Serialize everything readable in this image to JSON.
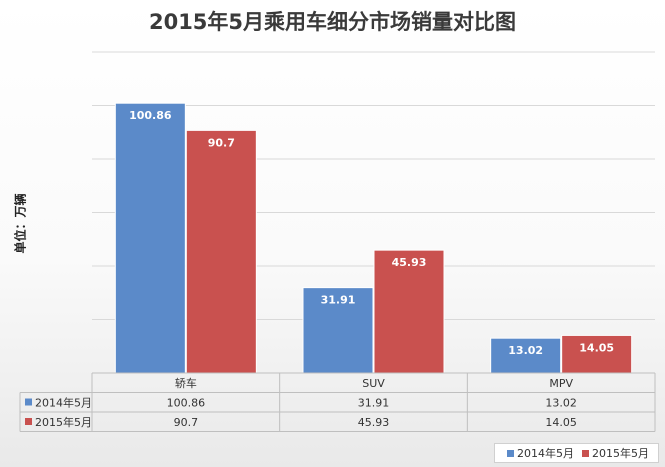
{
  "chart_data": {
    "type": "bar",
    "title": "2015年5月乘用车细分市场销量对比图",
    "ylabel": "单位：万辆",
    "xlabel": "",
    "categories": [
      "轿车",
      "SUV",
      "MPV"
    ],
    "series": [
      {
        "name": "2014年5月",
        "values": [
          100.86,
          31.91,
          13.02
        ],
        "color": "#5b8ac9"
      },
      {
        "name": "2015年5月",
        "values": [
          90.7,
          45.93,
          14.05
        ],
        "color": "#c9514f"
      }
    ],
    "ylim": [
      0,
      120
    ],
    "grid": true,
    "data_labels": true,
    "data_table": true,
    "legend_position": "bottom-right"
  }
}
